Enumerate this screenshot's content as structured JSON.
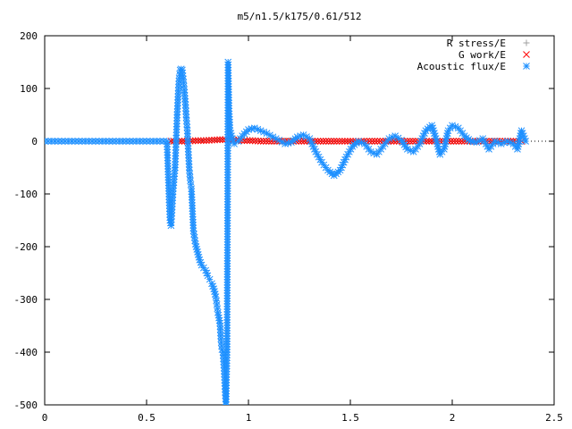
{
  "chart_data": {
    "type": "scatter",
    "title": "m5/n1.5/k175/0.61/512",
    "xlabel": "",
    "ylabel": "",
    "xlim": [
      0,
      2.5
    ],
    "ylim": [
      -500,
      200
    ],
    "x_ticks": [
      "0",
      "0.5",
      "1",
      "1.5",
      "2",
      "2.5"
    ],
    "y_ticks": [
      "200",
      "100",
      "0",
      "-100",
      "-200",
      "-300",
      "-400",
      "-500"
    ],
    "grid": false,
    "legend_position": "top-right",
    "series": [
      {
        "name": "R stress/E",
        "color": "#a0a0a0",
        "marker": "plus",
        "points": [
          [
            0.62,
            0
          ],
          [
            0.7,
            1
          ],
          [
            0.78,
            2
          ],
          [
            0.86,
            3
          ],
          [
            0.92,
            5
          ],
          [
            0.98,
            3
          ],
          [
            1.05,
            1
          ],
          [
            1.12,
            0
          ],
          [
            1.2,
            1
          ],
          [
            1.3,
            0
          ],
          [
            1.4,
            0
          ],
          [
            1.5,
            0
          ],
          [
            1.6,
            0
          ],
          [
            1.7,
            0
          ],
          [
            1.8,
            0
          ],
          [
            1.9,
            0
          ],
          [
            2.0,
            0
          ],
          [
            2.1,
            0
          ],
          [
            2.2,
            0
          ],
          [
            2.3,
            0
          ],
          [
            2.35,
            0
          ]
        ]
      },
      {
        "name": "G work/E",
        "color": "#ff0000",
        "marker": "cross",
        "points": [
          [
            0.62,
            0
          ],
          [
            0.66,
            0
          ],
          [
            0.7,
            0
          ],
          [
            0.74,
            1
          ],
          [
            0.78,
            1
          ],
          [
            0.82,
            2
          ],
          [
            0.86,
            3
          ],
          [
            0.9,
            3
          ],
          [
            0.94,
            2
          ],
          [
            0.98,
            1
          ],
          [
            1.02,
            1
          ],
          [
            1.06,
            0
          ],
          [
            1.1,
            0
          ],
          [
            1.14,
            0
          ],
          [
            1.18,
            0
          ],
          [
            1.22,
            0
          ],
          [
            1.26,
            0
          ],
          [
            1.3,
            0
          ],
          [
            1.34,
            0
          ],
          [
            1.38,
            0
          ],
          [
            1.42,
            0
          ],
          [
            1.46,
            0
          ],
          [
            1.5,
            0
          ],
          [
            1.54,
            0
          ],
          [
            1.58,
            0
          ],
          [
            1.62,
            0
          ],
          [
            1.66,
            0
          ],
          [
            1.7,
            0
          ],
          [
            1.74,
            0
          ],
          [
            1.78,
            0
          ],
          [
            1.82,
            0
          ],
          [
            1.86,
            0
          ],
          [
            1.9,
            0
          ],
          [
            1.94,
            0
          ],
          [
            1.98,
            0
          ],
          [
            2.02,
            0
          ],
          [
            2.06,
            0
          ],
          [
            2.1,
            0
          ],
          [
            2.14,
            0
          ],
          [
            2.18,
            0
          ],
          [
            2.22,
            0
          ],
          [
            2.26,
            0
          ],
          [
            2.3,
            0
          ],
          [
            2.34,
            0
          ]
        ]
      },
      {
        "name": "Acoustic flux/E",
        "color": "#1e90ff",
        "marker": "star",
        "points": [
          [
            0.0,
            0
          ],
          [
            0.05,
            0
          ],
          [
            0.1,
            0
          ],
          [
            0.15,
            0
          ],
          [
            0.2,
            0
          ],
          [
            0.25,
            0
          ],
          [
            0.3,
            0
          ],
          [
            0.35,
            0
          ],
          [
            0.4,
            0
          ],
          [
            0.45,
            0
          ],
          [
            0.5,
            0
          ],
          [
            0.55,
            0
          ],
          [
            0.6,
            0
          ],
          [
            0.61,
            -105
          ],
          [
            0.615,
            -150
          ],
          [
            0.62,
            -160
          ],
          [
            0.625,
            -130
          ],
          [
            0.63,
            -95
          ],
          [
            0.64,
            -50
          ],
          [
            0.645,
            0
          ],
          [
            0.65,
            50
          ],
          [
            0.655,
            90
          ],
          [
            0.66,
            120
          ],
          [
            0.665,
            135
          ],
          [
            0.67,
            137
          ],
          [
            0.675,
            135
          ],
          [
            0.68,
            118
          ],
          [
            0.685,
            98
          ],
          [
            0.69,
            75
          ],
          [
            0.695,
            45
          ],
          [
            0.7,
            20
          ],
          [
            0.705,
            -20
          ],
          [
            0.71,
            -55
          ],
          [
            0.715,
            -75
          ],
          [
            0.72,
            -90
          ],
          [
            0.73,
            -170
          ],
          [
            0.74,
            -195
          ],
          [
            0.75,
            -210
          ],
          [
            0.76,
            -225
          ],
          [
            0.77,
            -235
          ],
          [
            0.78,
            -240
          ],
          [
            0.79,
            -245
          ],
          [
            0.8,
            -255
          ],
          [
            0.81,
            -262
          ],
          [
            0.82,
            -270
          ],
          [
            0.83,
            -280
          ],
          [
            0.84,
            -295
          ],
          [
            0.845,
            -310
          ],
          [
            0.85,
            -325
          ],
          [
            0.855,
            -335
          ],
          [
            0.86,
            -345
          ],
          [
            0.865,
            -375
          ],
          [
            0.87,
            -395
          ],
          [
            0.875,
            -400
          ],
          [
            0.88,
            -430
          ],
          [
            0.885,
            -470
          ],
          [
            0.89,
            -500
          ],
          [
            0.895,
            -400
          ],
          [
            0.9,
            150
          ],
          [
            0.905,
            57
          ],
          [
            0.91,
            20
          ],
          [
            0.92,
            5
          ],
          [
            0.93,
            -5
          ],
          [
            0.95,
            0
          ],
          [
            0.97,
            10
          ],
          [
            1.0,
            22
          ],
          [
            1.03,
            25
          ],
          [
            1.06,
            20
          ],
          [
            1.09,
            15
          ],
          [
            1.12,
            8
          ],
          [
            1.15,
            2
          ],
          [
            1.18,
            -5
          ],
          [
            1.21,
            -2
          ],
          [
            1.24,
            8
          ],
          [
            1.27,
            12
          ],
          [
            1.3,
            5
          ],
          [
            1.33,
            -20
          ],
          [
            1.36,
            -40
          ],
          [
            1.39,
            -55
          ],
          [
            1.42,
            -65
          ],
          [
            1.45,
            -55
          ],
          [
            1.48,
            -30
          ],
          [
            1.51,
            -10
          ],
          [
            1.54,
            0
          ],
          [
            1.57,
            -5
          ],
          [
            1.6,
            -20
          ],
          [
            1.63,
            -25
          ],
          [
            1.66,
            -10
          ],
          [
            1.69,
            5
          ],
          [
            1.72,
            10
          ],
          [
            1.75,
            2
          ],
          [
            1.78,
            -15
          ],
          [
            1.81,
            -20
          ],
          [
            1.84,
            -5
          ],
          [
            1.87,
            20
          ],
          [
            1.9,
            30
          ],
          [
            1.92,
            5
          ],
          [
            1.94,
            -25
          ],
          [
            1.96,
            -15
          ],
          [
            1.98,
            20
          ],
          [
            2.0,
            30
          ],
          [
            2.03,
            25
          ],
          [
            2.06,
            10
          ],
          [
            2.09,
            0
          ],
          [
            2.12,
            -2
          ],
          [
            2.15,
            5
          ],
          [
            2.18,
            -15
          ],
          [
            2.21,
            0
          ],
          [
            2.24,
            -5
          ],
          [
            2.27,
            0
          ],
          [
            2.3,
            -5
          ],
          [
            2.32,
            -15
          ],
          [
            2.34,
            20
          ],
          [
            2.36,
            0
          ]
        ]
      }
    ]
  }
}
